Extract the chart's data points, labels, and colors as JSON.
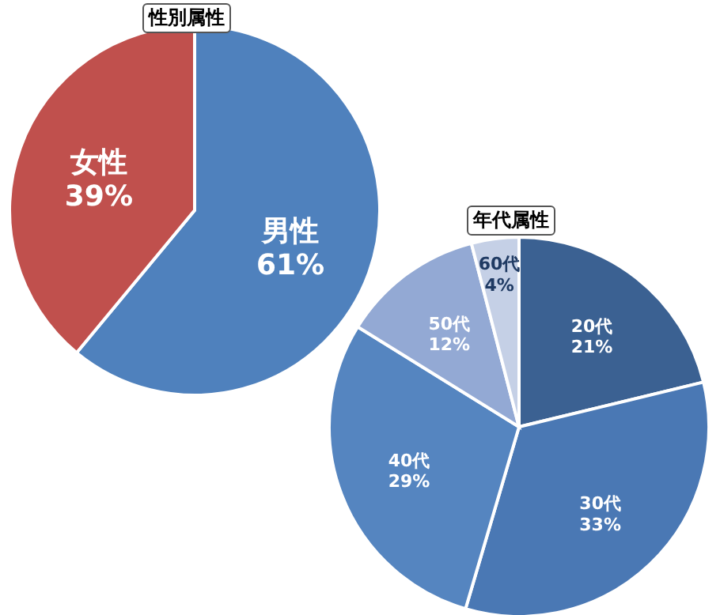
{
  "chart_data": [
    {
      "type": "pie",
      "title": "性別属性",
      "categories": [
        "男性",
        "女性"
      ],
      "values": [
        61,
        39
      ],
      "colors": [
        "#4f81bd",
        "#c0504d"
      ],
      "value_labels": [
        "61%",
        "39%"
      ]
    },
    {
      "type": "pie",
      "title": "年代属性",
      "categories": [
        "20代",
        "30代",
        "40代",
        "50代",
        "60代"
      ],
      "values": [
        21,
        33,
        29,
        12,
        4
      ],
      "colors": [
        "#3b6192",
        "#4a78b4",
        "#5585c0",
        "#93a9d4",
        "#c5d0e6"
      ],
      "value_labels": [
        "21%",
        "33%",
        "29%",
        "12%",
        "4%"
      ]
    }
  ]
}
